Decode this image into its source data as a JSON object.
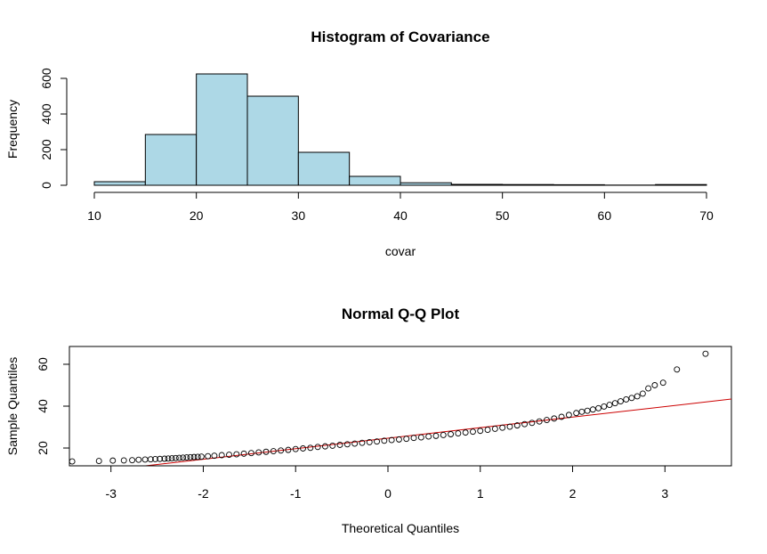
{
  "chart_data": [
    {
      "type": "bar",
      "title": "Histogram of Covariance",
      "xlabel": "covar",
      "ylabel": "Frequency",
      "bins": [
        {
          "from": 10,
          "to": 15,
          "count": 20
        },
        {
          "from": 15,
          "to": 20,
          "count": 285
        },
        {
          "from": 20,
          "to": 25,
          "count": 625
        },
        {
          "from": 25,
          "to": 30,
          "count": 500
        },
        {
          "from": 30,
          "to": 35,
          "count": 185
        },
        {
          "from": 35,
          "to": 40,
          "count": 50
        },
        {
          "from": 40,
          "to": 45,
          "count": 14
        },
        {
          "from": 45,
          "to": 50,
          "count": 5
        },
        {
          "from": 50,
          "to": 55,
          "count": 4
        },
        {
          "from": 55,
          "to": 60,
          "count": 3
        },
        {
          "from": 60,
          "to": 65,
          "count": 1
        },
        {
          "from": 65,
          "to": 70,
          "count": 4
        }
      ],
      "xlim": [
        10,
        70
      ],
      "ylim": [
        0,
        625
      ],
      "xticks": [
        10,
        20,
        30,
        40,
        50,
        60,
        70
      ],
      "yticks": [
        0,
        200,
        400,
        600
      ],
      "bar_color": "#add8e6",
      "grid": false
    },
    {
      "type": "scatter",
      "title": "Normal Q-Q Plot",
      "xlabel": "Theoretical Quantiles",
      "ylabel": "Sample Quantiles",
      "xlim": [
        -3.45,
        3.72
      ],
      "ylim": [
        11.5,
        68.5
      ],
      "xticks": [
        -3,
        -2,
        -1,
        0,
        1,
        2,
        3
      ],
      "yticks": [
        20,
        40,
        60
      ],
      "point_color": "#000000",
      "grid": false,
      "reference_line": {
        "color": "#cc0000",
        "x": [
          -3.72,
          3.72
        ],
        "y": [
          6.0,
          43.4
        ]
      },
      "points": [
        [
          -3.42,
          13.6
        ],
        [
          -3.13,
          13.8
        ],
        [
          -2.98,
          14.0
        ],
        [
          -2.86,
          14.1
        ],
        [
          -2.77,
          14.2
        ],
        [
          -2.7,
          14.4
        ],
        [
          -2.63,
          14.5
        ],
        [
          -2.57,
          14.6
        ],
        [
          -2.52,
          14.7
        ],
        [
          -2.47,
          14.8
        ],
        [
          -2.42,
          14.9
        ],
        [
          -2.38,
          15.0
        ],
        [
          -2.34,
          15.1
        ],
        [
          -2.3,
          15.2
        ],
        [
          -2.26,
          15.3
        ],
        [
          -2.22,
          15.4
        ],
        [
          -2.18,
          15.5
        ],
        [
          -2.14,
          15.6
        ],
        [
          -2.1,
          15.7
        ],
        [
          -2.06,
          15.8
        ],
        [
          -2.02,
          15.9
        ],
        [
          -1.95,
          16.1
        ],
        [
          -1.88,
          16.3
        ],
        [
          -1.8,
          16.6
        ],
        [
          -1.72,
          16.8
        ],
        [
          -1.64,
          17.0
        ],
        [
          -1.56,
          17.3
        ],
        [
          -1.48,
          17.6
        ],
        [
          -1.4,
          17.9
        ],
        [
          -1.32,
          18.2
        ],
        [
          -1.24,
          18.5
        ],
        [
          -1.16,
          18.8
        ],
        [
          -1.08,
          19.1
        ],
        [
          -1.0,
          19.5
        ],
        [
          -0.92,
          19.8
        ],
        [
          -0.84,
          20.1
        ],
        [
          -0.76,
          20.5
        ],
        [
          -0.68,
          20.8
        ],
        [
          -0.6,
          21.1
        ],
        [
          -0.52,
          21.5
        ],
        [
          -0.44,
          21.8
        ],
        [
          -0.36,
          22.1
        ],
        [
          -0.28,
          22.5
        ],
        [
          -0.2,
          22.8
        ],
        [
          -0.12,
          23.1
        ],
        [
          -0.04,
          23.5
        ],
        [
          0.04,
          23.8
        ],
        [
          0.12,
          24.1
        ],
        [
          0.2,
          24.4
        ],
        [
          0.28,
          24.8
        ],
        [
          0.36,
          25.1
        ],
        [
          0.44,
          25.5
        ],
        [
          0.52,
          25.8
        ],
        [
          0.6,
          26.2
        ],
        [
          0.68,
          26.6
        ],
        [
          0.76,
          27.0
        ],
        [
          0.84,
          27.4
        ],
        [
          0.92,
          27.8
        ],
        [
          1.0,
          28.2
        ],
        [
          1.08,
          28.7
        ],
        [
          1.16,
          29.2
        ],
        [
          1.24,
          29.7
        ],
        [
          1.32,
          30.2
        ],
        [
          1.4,
          30.8
        ],
        [
          1.48,
          31.4
        ],
        [
          1.56,
          32.0
        ],
        [
          1.64,
          32.7
        ],
        [
          1.72,
          33.4
        ],
        [
          1.8,
          34.1
        ],
        [
          1.88,
          34.9
        ],
        [
          1.96,
          35.8
        ],
        [
          2.04,
          36.7
        ],
        [
          2.1,
          37.3
        ],
        [
          2.16,
          37.8
        ],
        [
          2.22,
          38.4
        ],
        [
          2.28,
          39.0
        ],
        [
          2.34,
          39.8
        ],
        [
          2.4,
          40.6
        ],
        [
          2.46,
          41.4
        ],
        [
          2.52,
          42.3
        ],
        [
          2.58,
          43.2
        ],
        [
          2.64,
          43.9
        ],
        [
          2.7,
          44.7
        ],
        [
          2.76,
          46.0
        ],
        [
          2.82,
          48.5
        ],
        [
          2.89,
          50.0
        ],
        [
          2.98,
          51.2
        ],
        [
          3.13,
          57.5
        ],
        [
          3.44,
          65.0
        ]
      ]
    }
  ]
}
